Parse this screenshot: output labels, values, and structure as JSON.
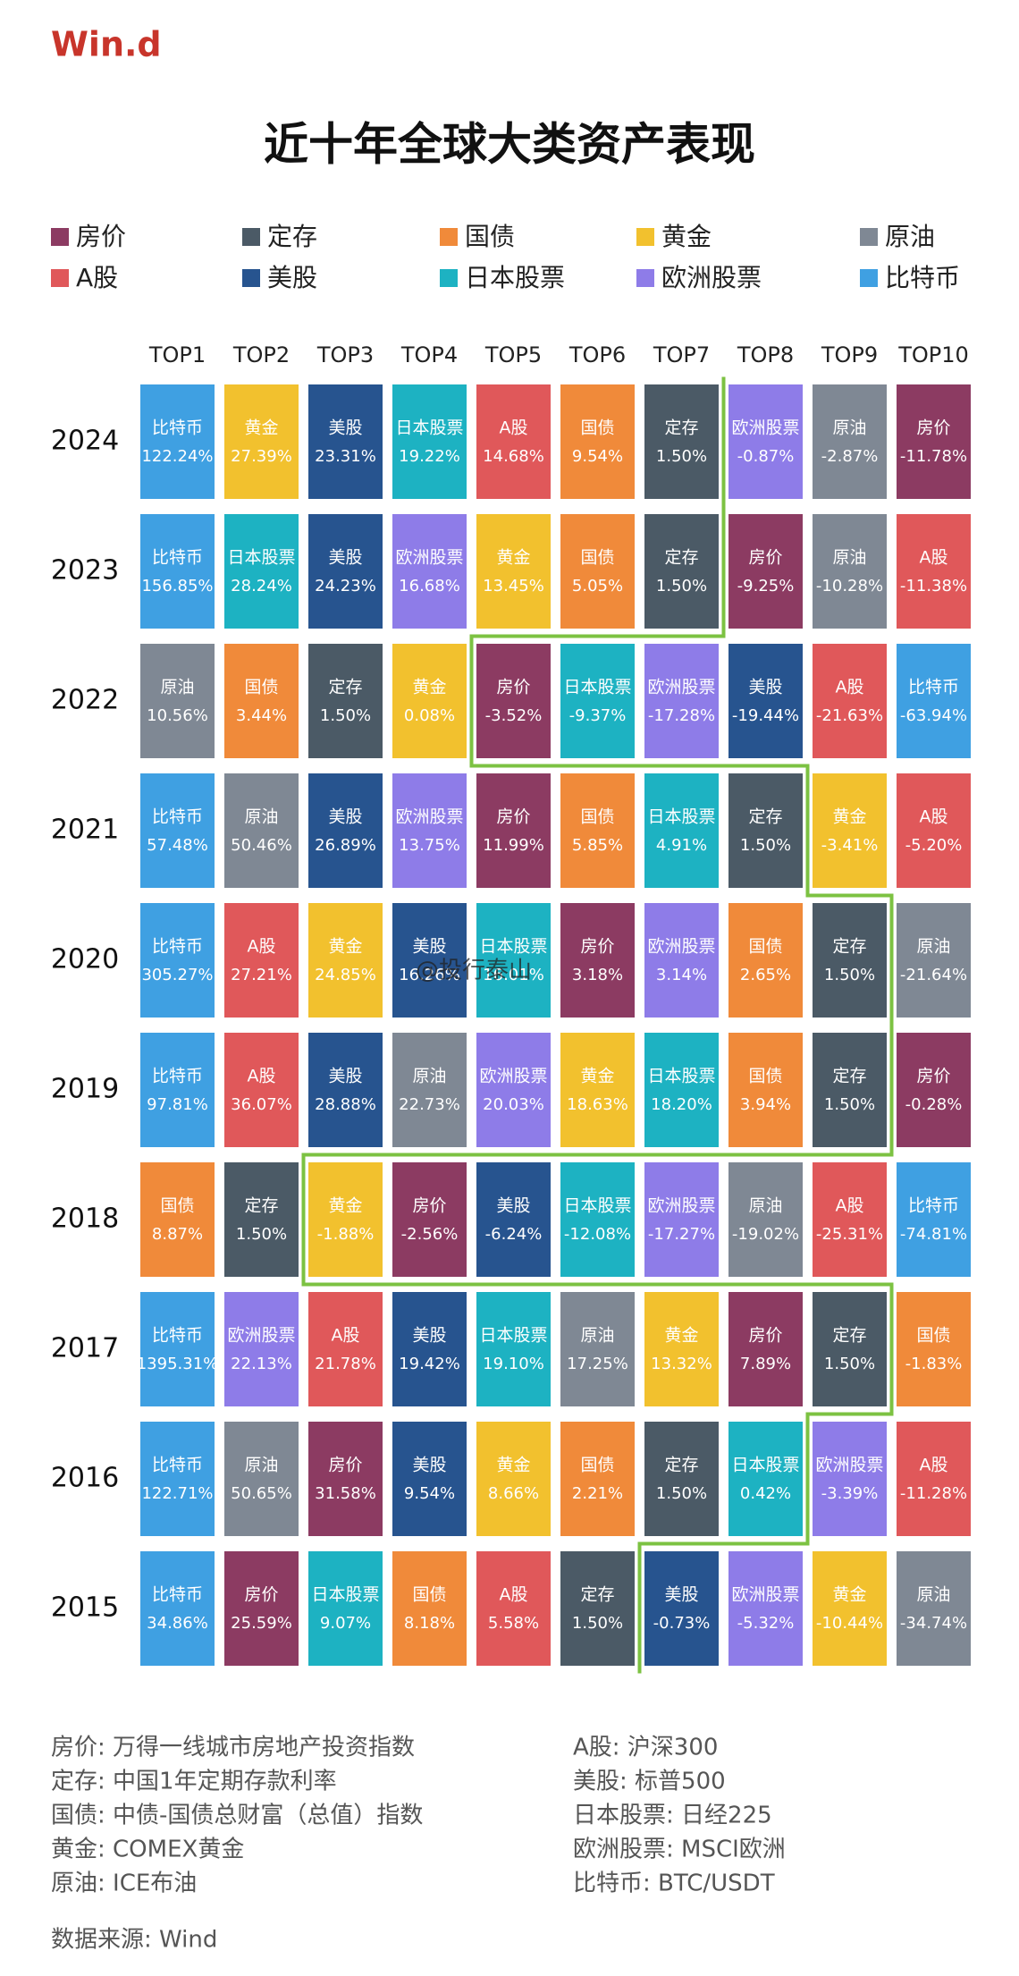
{
  "logo": "Win.d",
  "title": "近十年全球大类资产表现",
  "legend": [
    {
      "name": "房价",
      "color": "#8c3b62"
    },
    {
      "name": "定存",
      "color": "#4b5a66"
    },
    {
      "name": "国债",
      "color": "#f08a3a"
    },
    {
      "name": "黄金",
      "color": "#f2c12e"
    },
    {
      "name": "原油",
      "color": "#7f8894"
    },
    {
      "name": "A股",
      "color": "#e0585a"
    },
    {
      "name": "美股",
      "color": "#27548f"
    },
    {
      "name": "日本股票",
      "color": "#1db2c2"
    },
    {
      "name": "欧洲股票",
      "color": "#8e7ce8"
    },
    {
      "name": "比特币",
      "color": "#3fa0e2"
    }
  ],
  "columns": [
    "TOP1",
    "TOP2",
    "TOP3",
    "TOP4",
    "TOP5",
    "TOP6",
    "TOP7",
    "TOP8",
    "TOP9",
    "TOP10"
  ],
  "rows": [
    {
      "year": "2024",
      "cells": [
        {
          "name": "比特币",
          "value": "122.24%"
        },
        {
          "name": "黄金",
          "value": "27.39%"
        },
        {
          "name": "美股",
          "value": "23.31%"
        },
        {
          "name": "日本股票",
          "value": "19.22%"
        },
        {
          "name": "A股",
          "value": "14.68%"
        },
        {
          "name": "国债",
          "value": "9.54%"
        },
        {
          "name": "定存",
          "value": "1.50%"
        },
        {
          "name": "欧洲股票",
          "value": "-0.87%"
        },
        {
          "name": "原油",
          "value": "-2.87%"
        },
        {
          "name": "房价",
          "value": "-11.78%"
        }
      ]
    },
    {
      "year": "2023",
      "cells": [
        {
          "name": "比特币",
          "value": "156.85%"
        },
        {
          "name": "日本股票",
          "value": "28.24%"
        },
        {
          "name": "美股",
          "value": "24.23%"
        },
        {
          "name": "欧洲股票",
          "value": "16.68%"
        },
        {
          "name": "黄金",
          "value": "13.45%"
        },
        {
          "name": "国债",
          "value": "5.05%"
        },
        {
          "name": "定存",
          "value": "1.50%"
        },
        {
          "name": "房价",
          "value": "-9.25%"
        },
        {
          "name": "原油",
          "value": "-10.28%"
        },
        {
          "name": "A股",
          "value": "-11.38%"
        }
      ]
    },
    {
      "year": "2022",
      "cells": [
        {
          "name": "原油",
          "value": "10.56%"
        },
        {
          "name": "国债",
          "value": "3.44%"
        },
        {
          "name": "定存",
          "value": "1.50%"
        },
        {
          "name": "黄金",
          "value": "0.08%"
        },
        {
          "name": "房价",
          "value": "-3.52%"
        },
        {
          "name": "日本股票",
          "value": "-9.37%"
        },
        {
          "name": "欧洲股票",
          "value": "-17.28%"
        },
        {
          "name": "美股",
          "value": "-19.44%"
        },
        {
          "name": "A股",
          "value": "-21.63%"
        },
        {
          "name": "比特币",
          "value": "-63.94%"
        }
      ]
    },
    {
      "year": "2021",
      "cells": [
        {
          "name": "比特币",
          "value": "57.48%"
        },
        {
          "name": "原油",
          "value": "50.46%"
        },
        {
          "name": "美股",
          "value": "26.89%"
        },
        {
          "name": "欧洲股票",
          "value": "13.75%"
        },
        {
          "name": "房价",
          "value": "11.99%"
        },
        {
          "name": "国债",
          "value": "5.85%"
        },
        {
          "name": "日本股票",
          "value": "4.91%"
        },
        {
          "name": "定存",
          "value": "1.50%"
        },
        {
          "name": "黄金",
          "value": "-3.41%"
        },
        {
          "name": "A股",
          "value": "-5.20%"
        }
      ]
    },
    {
      "year": "2020",
      "cells": [
        {
          "name": "比特币",
          "value": "305.27%"
        },
        {
          "name": "A股",
          "value": "27.21%"
        },
        {
          "name": "黄金",
          "value": "24.85%"
        },
        {
          "name": "美股",
          "value": "16.26%"
        },
        {
          "name": "日本股票",
          "value": "16.01%"
        },
        {
          "name": "房价",
          "value": "3.18%"
        },
        {
          "name": "欧洲股票",
          "value": "3.14%"
        },
        {
          "name": "国债",
          "value": "2.65%"
        },
        {
          "name": "定存",
          "value": "1.50%"
        },
        {
          "name": "原油",
          "value": "-21.64%"
        }
      ]
    },
    {
      "year": "2019",
      "cells": [
        {
          "name": "比特币",
          "value": "97.81%"
        },
        {
          "name": "A股",
          "value": "36.07%"
        },
        {
          "name": "美股",
          "value": "28.88%"
        },
        {
          "name": "原油",
          "value": "22.73%"
        },
        {
          "name": "欧洲股票",
          "value": "20.03%"
        },
        {
          "name": "黄金",
          "value": "18.63%"
        },
        {
          "name": "日本股票",
          "value": "18.20%"
        },
        {
          "name": "国债",
          "value": "3.94%"
        },
        {
          "name": "定存",
          "value": "1.50%"
        },
        {
          "name": "房价",
          "value": "-0.28%"
        }
      ]
    },
    {
      "year": "2018",
      "cells": [
        {
          "name": "国债",
          "value": "8.87%"
        },
        {
          "name": "定存",
          "value": "1.50%"
        },
        {
          "name": "黄金",
          "value": "-1.88%"
        },
        {
          "name": "房价",
          "value": "-2.56%"
        },
        {
          "name": "美股",
          "value": "-6.24%"
        },
        {
          "name": "日本股票",
          "value": "-12.08%"
        },
        {
          "name": "欧洲股票",
          "value": "-17.27%"
        },
        {
          "name": "原油",
          "value": "-19.02%"
        },
        {
          "name": "A股",
          "value": "-25.31%"
        },
        {
          "name": "比特币",
          "value": "-74.81%"
        }
      ]
    },
    {
      "year": "2017",
      "cells": [
        {
          "name": "比特币",
          "value": "1395.31%"
        },
        {
          "name": "欧洲股票",
          "value": "22.13%"
        },
        {
          "name": "A股",
          "value": "21.78%"
        },
        {
          "name": "美股",
          "value": "19.42%"
        },
        {
          "name": "日本股票",
          "value": "19.10%"
        },
        {
          "name": "原油",
          "value": "17.25%"
        },
        {
          "name": "黄金",
          "value": "13.32%"
        },
        {
          "name": "房价",
          "value": "7.89%"
        },
        {
          "name": "定存",
          "value": "1.50%"
        },
        {
          "name": "国债",
          "value": "-1.83%"
        }
      ]
    },
    {
      "year": "2016",
      "cells": [
        {
          "name": "比特币",
          "value": "122.71%"
        },
        {
          "name": "原油",
          "value": "50.65%"
        },
        {
          "name": "房价",
          "value": "31.58%"
        },
        {
          "name": "美股",
          "value": "9.54%"
        },
        {
          "name": "黄金",
          "value": "8.66%"
        },
        {
          "name": "国债",
          "value": "2.21%"
        },
        {
          "name": "定存",
          "value": "1.50%"
        },
        {
          "name": "日本股票",
          "value": "0.42%"
        },
        {
          "name": "欧洲股票",
          "value": "-3.39%"
        },
        {
          "name": "A股",
          "value": "-11.28%"
        }
      ]
    },
    {
      "year": "2015",
      "cells": [
        {
          "name": "比特币",
          "value": "34.86%"
        },
        {
          "name": "房价",
          "value": "25.59%"
        },
        {
          "name": "日本股票",
          "value": "9.07%"
        },
        {
          "name": "国债",
          "value": "8.18%"
        },
        {
          "name": "A股",
          "value": "5.58%"
        },
        {
          "name": "定存",
          "value": "1.50%"
        },
        {
          "name": "美股",
          "value": "-0.73%"
        },
        {
          "name": "欧洲股票",
          "value": "-5.32%"
        },
        {
          "name": "黄金",
          "value": "-10.44%"
        },
        {
          "name": "原油",
          "value": "-34.74%"
        }
      ]
    }
  ],
  "watermark": "@投行泰山",
  "notes_left": [
    "房价: 万得一线城市房地产投资指数",
    "定存: 中国1年定期存款利率",
    "国债: 中债-国债总财富（总值）指数",
    "黄金: COMEX黄金",
    "原油: ICE布油"
  ],
  "notes_right": [
    "A股: 沪深300",
    "美股: 标普500",
    "日本股票: 日经225",
    "欧洲股票: MSCI欧洲",
    "比特币: BTC/USDT"
  ],
  "source": "数据来源: Wind"
}
